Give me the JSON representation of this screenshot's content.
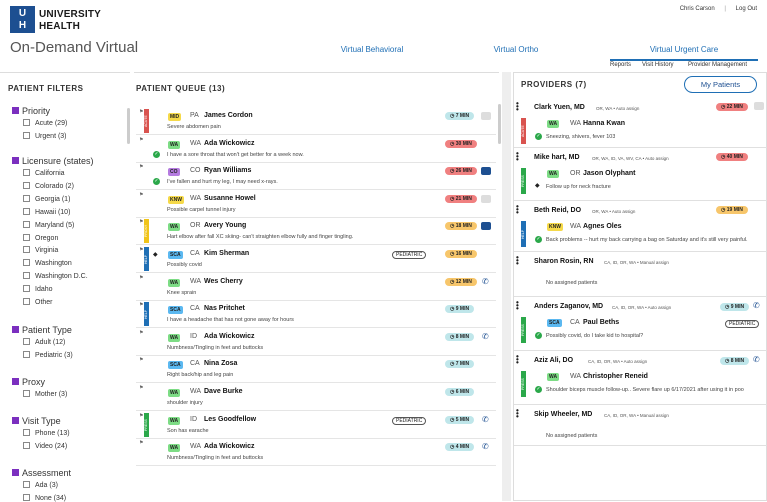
{
  "header": {
    "logo_initials": [
      "U",
      "H"
    ],
    "org_name_line1": "UNIVERSITY",
    "org_name_line2": "HEALTH",
    "app_title": "On-Demand Virtual",
    "user_name": "Chris Carson",
    "logout": "Log Out",
    "tabs": [
      {
        "label": "Virtual Behavioral",
        "active": false
      },
      {
        "label": "Virtual Ortho",
        "active": false
      },
      {
        "label": "Virtual Urgent Care",
        "active": true
      }
    ],
    "subnav": [
      "Reports",
      "Visit History",
      "Provider Management"
    ]
  },
  "filters": {
    "title": "PATIENT FILTERS",
    "groups": [
      {
        "title": "Priority",
        "items": [
          "Acute (29)",
          "Urgent (3)"
        ]
      },
      {
        "title": "Licensure (states)",
        "items": [
          "California",
          "Colorado (2)",
          "Georgia (1)",
          "Hawaii (10)",
          "Maryland (5)",
          "Oregon",
          "Virginia",
          "Washington",
          "Washington D.C.",
          "Idaho",
          "Other"
        ]
      },
      {
        "title": "Patient Type",
        "items": [
          "Adult (12)",
          "Pediatric (3)"
        ]
      },
      {
        "title": "Proxy",
        "items": [
          "Mother (3)"
        ]
      },
      {
        "title": "Visit Type",
        "items": [
          "Phone (13)",
          "Video (24)"
        ]
      },
      {
        "title": "Assessment",
        "items": [
          "Ada (3)",
          "None (34)"
        ]
      }
    ]
  },
  "queue": {
    "title": "PATIENT QUEUE (13)",
    "pediatric_label": "PEDIATRIC",
    "rows": [
      {
        "badge": "MID",
        "badge_color": "#f5d94a",
        "state": "PA",
        "name": "James Cordon",
        "desc": "Severe abdomen pain",
        "time": "7 MIN",
        "time_color": "#bfe6ea",
        "icon": "message",
        "tag": "ACUTE",
        "tag_color": "#d9534f",
        "check": false,
        "pediatric": false
      },
      {
        "badge": "WA",
        "badge_color": "#7ddc85",
        "state": "WA",
        "name": "Ada Wickowicz",
        "desc": "I have a sore throat that won't get better for a week now.",
        "time": "30 MIN",
        "time_color": "#f08080",
        "icon": "none",
        "tag": "",
        "tag_color": "",
        "check": true,
        "pediatric": false
      },
      {
        "badge": "CO",
        "badge_color": "#b57be0",
        "state": "CO",
        "name": "Ryan Williams",
        "desc": "I've fallen and hurt my leg, I may need x-rays.",
        "time": "26 MIN",
        "time_color": "#f08080",
        "icon": "message-blue",
        "tag": "",
        "tag_color": "",
        "check": true,
        "pediatric": false
      },
      {
        "badge": "KNW",
        "badge_color": "#f5d94a",
        "state": "WA",
        "name": "Susanne Howel",
        "desc": "Possible carpel tunnel injury",
        "time": "21 MIN",
        "time_color": "#f08080",
        "icon": "message",
        "tag": "",
        "tag_color": "",
        "check": false,
        "pediatric": false
      },
      {
        "badge": "WA",
        "badge_color": "#7ddc85",
        "state": "OR",
        "name": "Avery Young",
        "desc": "Hart elbow after fall XC skiing- can't straighten elbow fully and finger tingling.",
        "time": "18 MIN",
        "time_color": "#f7c66b",
        "icon": "message-blue",
        "tag": "PROXY",
        "tag_color": "#f0c419",
        "check": false,
        "pediatric": false
      },
      {
        "badge": "SCA",
        "badge_color": "#5bb8f0",
        "state": "CA",
        "name": "Kim Sherman",
        "desc": "Possibly covid",
        "time": "16 MIN",
        "time_color": "#f7c66b",
        "icon": "none",
        "tag": "HELP",
        "tag_color": "#1f6fb5",
        "check": false,
        "pediatric": true
      },
      {
        "badge": "WA",
        "badge_color": "#7ddc85",
        "state": "WA",
        "name": "Wes Cherry",
        "desc": "Knee sprain",
        "time": "12 MIN",
        "time_color": "#f7c66b",
        "icon": "phone",
        "tag": "",
        "tag_color": "",
        "check": false,
        "pediatric": false
      },
      {
        "badge": "SCA",
        "badge_color": "#5bb8f0",
        "state": "CA",
        "name": "Nas Pritchet",
        "desc": "I have a headache that has not gone away for hours",
        "time": "9 MIN",
        "time_color": "#bfe6ea",
        "icon": "none",
        "tag": "HELP",
        "tag_color": "#1f6fb5",
        "check": false,
        "pediatric": false
      },
      {
        "badge": "WA",
        "badge_color": "#7ddc85",
        "state": "ID",
        "name": "Ada Wickowicz",
        "desc": "Numbness/Tingling in feet and buttocks",
        "time": "8 MIN",
        "time_color": "#bfe6ea",
        "icon": "phone",
        "tag": "",
        "tag_color": "",
        "check": false,
        "pediatric": false
      },
      {
        "badge": "SCA",
        "badge_color": "#5bb8f0",
        "state": "CA",
        "name": "Nina Zosa",
        "desc": "Right back/hip and leg pain",
        "time": "7 MIN",
        "time_color": "#bfe6ea",
        "icon": "none",
        "tag": "",
        "tag_color": "",
        "check": false,
        "pediatric": false
      },
      {
        "badge": "WA",
        "badge_color": "#7ddc85",
        "state": "WA",
        "name": "Dave Burke",
        "desc": "shoulder injury",
        "time": "6 MIN",
        "time_color": "#bfe6ea",
        "icon": "none",
        "tag": "",
        "tag_color": "",
        "check": false,
        "pediatric": false
      },
      {
        "badge": "WA",
        "badge_color": "#7ddc85",
        "state": "ID",
        "name": "Les Goodfellow",
        "desc": "Son has earache",
        "time": "5 MIN",
        "time_color": "#bfe6ea",
        "icon": "phone",
        "tag": "PRESS",
        "tag_color": "#2ba84a",
        "check": false,
        "pediatric": true
      },
      {
        "badge": "WA",
        "badge_color": "#7ddc85",
        "state": "WA",
        "name": "Ada Wickowicz",
        "desc": "Numbness/Tingling in feet and buttocks",
        "time": "4 MIN",
        "time_color": "#bfe6ea",
        "icon": "phone",
        "tag": "",
        "tag_color": "",
        "check": false,
        "pediatric": false
      }
    ]
  },
  "providers": {
    "title": "PROVIDERS (7)",
    "my_patients_button": "My Patients",
    "no_patients": "No assigned patients",
    "list": [
      {
        "name": "Clark Yuen, MD",
        "states": "OR, WA • Auto assign",
        "time": "22 MIN",
        "time_color": "#f08080",
        "patient": {
          "badge": "WA",
          "badge_color": "#7ddc85",
          "state": "WA",
          "name": "Hanna Kwan",
          "desc": "Sneezing, shivers, fever 103",
          "tag": "ACUTE",
          "tag_color": "#d9534f",
          "check": true
        }
      },
      {
        "name": "Mike hart, MD",
        "states": "OR, WA, ID, VA, WV, CA • Auto assign",
        "time": "40 MIN",
        "time_color": "#f08080",
        "patient": {
          "badge": "WA",
          "badge_color": "#7ddc85",
          "state": "OR",
          "name": "Jason Olyphant",
          "desc": "Follow up for neck fracture",
          "tag": "PRESS",
          "tag_color": "#2ba84a",
          "check": false
        }
      },
      {
        "name": "Beth Reid, DO",
        "states": "OR, WA • Auto assign",
        "time": "19 MIN",
        "time_color": "#f7c66b",
        "patient": {
          "badge": "KNW",
          "badge_color": "#f5d94a",
          "state": "WA",
          "name": "Agnes Oles",
          "desc": "Back problems -- hurt my back carrying a bag on Saturday and it's still very painful.",
          "tag": "HELP",
          "tag_color": "#1f6fb5",
          "check": true
        }
      },
      {
        "name": "Sharon Rosin, RN",
        "states": "CA, ID, OR, WA • Manual assign",
        "time": "",
        "time_color": "",
        "patient": null
      },
      {
        "name": "Anders Zaganov, MD",
        "states": "CA, ID, OR, WA • Auto assign",
        "time": "",
        "time_color": "",
        "patient": {
          "badge": "SCA",
          "badge_color": "#5bb8f0",
          "state": "CA",
          "name": "Paul Beths",
          "desc": "Possibly covid, do I take kid to hospital?",
          "tag": "PRESS",
          "tag_color": "#2ba84a",
          "check": true,
          "pediatric": true,
          "ptime": "9 MIN"
        }
      },
      {
        "name": "Aziz Ali, DO",
        "states": "CA, ID, OR, WA • Auto assign",
        "time": "",
        "time_color": "",
        "patient": {
          "badge": "WA",
          "badge_color": "#7ddc85",
          "state": "WA",
          "name": "Christopher Reneid",
          "desc": "Shoulder biceps muscle follow-up.. Severe flare up 6/17/2021 after using it in poo",
          "tag": "PRESS",
          "tag_color": "#2ba84a",
          "check": true,
          "ptime": "8 MIN"
        }
      },
      {
        "name": "Skip Wheeler, MD",
        "states": "CA, ID, OR, WA • Manual assign",
        "time": "",
        "time_color": "",
        "patient": null
      }
    ]
  }
}
